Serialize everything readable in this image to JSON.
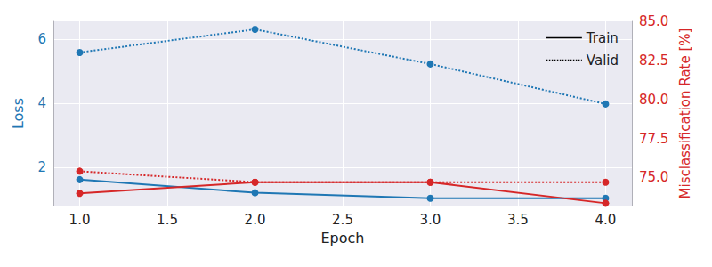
{
  "chart_data": {
    "type": "line",
    "x_label": "Epoch",
    "y_label": "Loss",
    "y2_label": "Misclassification Rate [%]",
    "x": [
      1,
      2,
      3,
      4
    ],
    "xlim": [
      0.85,
      4.15
    ],
    "xticks": [
      {
        "value": 1,
        "label": "1.0"
      },
      {
        "value": 1.5,
        "label": "1.5"
      },
      {
        "value": 2,
        "label": "2.0"
      },
      {
        "value": 2.5,
        "label": "2.5"
      },
      {
        "value": 3,
        "label": "3.0"
      },
      {
        "value": 3.5,
        "label": "3.5"
      },
      {
        "value": 4,
        "label": "4.0"
      }
    ],
    "ylim": [
      0.8,
      6.55
    ],
    "yticks": [
      2,
      4,
      6
    ],
    "y2lim": [
      73.2,
      85.0
    ],
    "y2ticks": [
      {
        "value": 75,
        "label": "75.0"
      },
      {
        "value": 77.5,
        "label": "77.5"
      },
      {
        "value": 80,
        "label": "80.0"
      },
      {
        "value": 82.5,
        "label": "82.5"
      },
      {
        "value": 85,
        "label": "85.0"
      }
    ],
    "grid": true,
    "legend": "upper right",
    "marker": "circle",
    "series": [
      {
        "name": "Train",
        "color": "#1f77b4",
        "line_style": "solid",
        "axis": "y",
        "values": [
          1.61,
          1.2,
          1.03,
          1.03
        ]
      },
      {
        "name": "Valid",
        "color": "#1f77b4",
        "line_style": "dotted",
        "axis": "y",
        "values": [
          5.58,
          6.3,
          5.22,
          3.97
        ]
      },
      {
        "name": "Train",
        "color": "#d62728",
        "line_style": "solid",
        "axis": "y2",
        "values": [
          73.98,
          74.7,
          74.7,
          73.35
        ]
      },
      {
        "name": "Valid",
        "color": "#d62728",
        "line_style": "dotted",
        "axis": "y2",
        "values": [
          75.4,
          74.7,
          74.7,
          74.7
        ]
      }
    ]
  }
}
